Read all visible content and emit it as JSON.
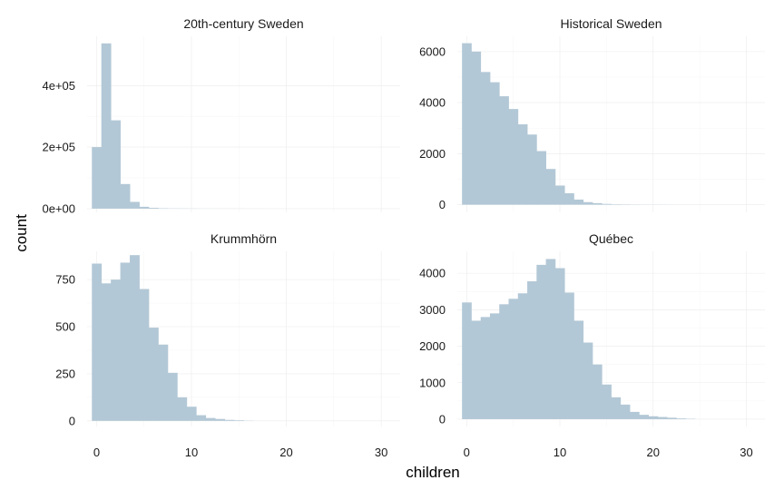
{
  "chart_data": {
    "type": "bar",
    "xlabel": "children",
    "ylabel": "count",
    "bar_color": "#b3c8d6",
    "grid": true,
    "xlim": [
      -1,
      32
    ],
    "x_ticks": [
      0,
      10,
      20,
      30
    ],
    "x_tick_labels": [
      "0",
      "10",
      "20",
      "30"
    ],
    "bin_width": 1,
    "panels": [
      {
        "title": "20th-century Sweden",
        "ylim": [
          -12000,
          560000
        ],
        "y_ticks": [
          0,
          200000,
          400000
        ],
        "y_tick_labels": [
          "0e+00",
          "2e+05",
          "4e+05"
        ],
        "bins": [
          0,
          1,
          2,
          3,
          4,
          5,
          6,
          7,
          8,
          9,
          10,
          11,
          12,
          13,
          14,
          15,
          16,
          17,
          18,
          19,
          20,
          21,
          22,
          23,
          24
        ],
        "counts": [
          200000,
          537000,
          287000,
          80000,
          22000,
          6000,
          2500,
          1200,
          700,
          500,
          350,
          250,
          150,
          100,
          80,
          60,
          40,
          30,
          20,
          15,
          10,
          8,
          5,
          3,
          2
        ]
      },
      {
        "title": "Historical Sweden",
        "ylim": [
          -300,
          6600
        ],
        "y_ticks": [
          0,
          2000,
          4000,
          6000
        ],
        "y_tick_labels": [
          "0",
          "2000",
          "4000",
          "6000"
        ],
        "bins": [
          0,
          1,
          2,
          3,
          4,
          5,
          6,
          7,
          8,
          9,
          10,
          11,
          12,
          13,
          14,
          15,
          16,
          17,
          18,
          19,
          20,
          21,
          22
        ],
        "counts": [
          6330,
          6000,
          5200,
          4800,
          4250,
          3750,
          3150,
          2750,
          2100,
          1400,
          750,
          450,
          200,
          100,
          60,
          30,
          15,
          10,
          6,
          4,
          3,
          2,
          1
        ]
      },
      {
        "title": "Krummhörn",
        "ylim": [
          -30,
          900
        ],
        "y_ticks": [
          0,
          250,
          500,
          750
        ],
        "y_tick_labels": [
          "0",
          "250",
          "500",
          "750"
        ],
        "bins": [
          0,
          1,
          2,
          3,
          4,
          5,
          6,
          7,
          8,
          9,
          10,
          11,
          12,
          13,
          14,
          15,
          16
        ],
        "counts": [
          835,
          730,
          750,
          840,
          880,
          700,
          495,
          405,
          255,
          125,
          75,
          30,
          15,
          10,
          5,
          3,
          1
        ]
      },
      {
        "title": "Québec",
        "ylim": [
          -200,
          4600
        ],
        "y_ticks": [
          0,
          1000,
          2000,
          3000,
          4000
        ],
        "y_tick_labels": [
          "0",
          "1000",
          "2000",
          "3000",
          "4000"
        ],
        "bins": [
          0,
          1,
          2,
          3,
          4,
          5,
          6,
          7,
          8,
          9,
          10,
          11,
          12,
          13,
          14,
          15,
          16,
          17,
          18,
          19,
          20,
          21,
          22,
          23,
          24
        ],
        "counts": [
          3200,
          2700,
          2800,
          2900,
          3150,
          3300,
          3450,
          3780,
          4230,
          4390,
          4140,
          3470,
          2700,
          2100,
          1500,
          950,
          600,
          400,
          200,
          120,
          80,
          60,
          40,
          20,
          10
        ]
      }
    ]
  }
}
